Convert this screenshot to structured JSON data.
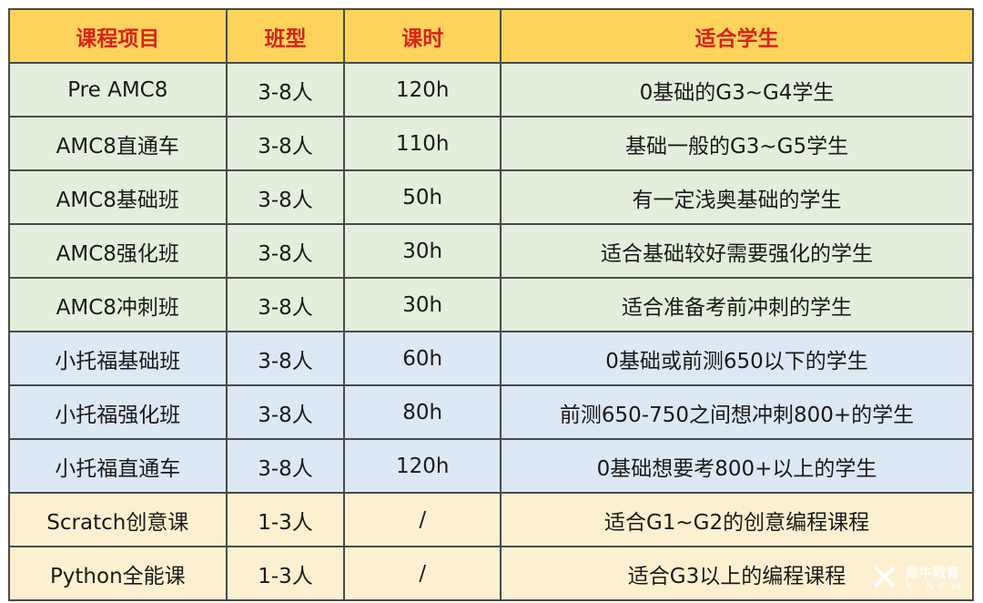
{
  "headers": [
    "课程项目",
    "班型",
    "课时",
    "适合学生"
  ],
  "colors": {
    "header": "#fdd35c",
    "header_text": "#d8231a",
    "amc": "#e3efdc",
    "toefl": "#dde8f5",
    "coding": "#fdf0d0"
  },
  "rows": [
    {
      "course": "Pre AMC8",
      "size": "3-8人",
      "hours": "120h",
      "students": "0基础的G3~G4学生",
      "group": "amc"
    },
    {
      "course": "AMC8直通车",
      "size": "3-8人",
      "hours": "110h",
      "students": "基础一般的G3~G5学生",
      "group": "amc"
    },
    {
      "course": "AMC8基础班",
      "size": "3-8人",
      "hours": "50h",
      "students": "有一定浅奥基础的学生",
      "group": "amc"
    },
    {
      "course": "AMC8强化班",
      "size": "3-8人",
      "hours": "30h",
      "students": "适合基础较好需要强化的学生",
      "group": "amc"
    },
    {
      "course": "AMC8冲刺班",
      "size": "3-8人",
      "hours": "30h",
      "students": "适合准备考前冲刺的学生",
      "group": "amc"
    },
    {
      "course": "小托福基础班",
      "size": "3-8人",
      "hours": "60h",
      "students": "0基础或前测650以下的学生",
      "group": "toefl"
    },
    {
      "course": "小托福强化班",
      "size": "3-8人",
      "hours": "80h",
      "students": "前测650-750之间想冲刺800+的学生",
      "group": "toefl"
    },
    {
      "course": "小托福直通车",
      "size": "3-8人",
      "hours": "120h",
      "students": "0基础想要考800+以上的学生",
      "group": "toefl"
    },
    {
      "course": "Scratch创意课",
      "size": "1-3人",
      "hours": "/",
      "students": "适合G1~G2的创意编程课程",
      "group": "coding"
    },
    {
      "course": "Python全能课",
      "size": "1-3人",
      "hours": "/",
      "students": "适合G3以上的编程课程",
      "group": "coding"
    }
  ],
  "watermark": {
    "logo": "X",
    "name": "犀牛教育",
    "sub": "X-NEW"
  }
}
